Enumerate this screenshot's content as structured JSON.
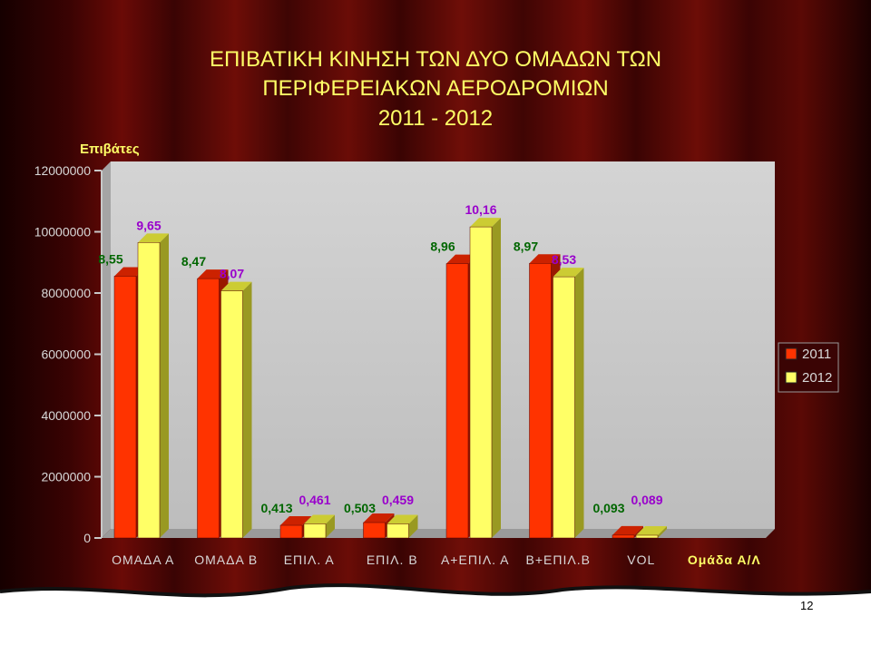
{
  "slide": {
    "title_line1": "ΕΠΙΒΑΤΙΚΗ ΚΙΝΗΣΗ ΤΩΝ ΔΥΟ ΟΜΑΔΩΝ ΤΩΝ",
    "title_line2": "ΠΕΡΙΦΕΡΕΙΑΚΩΝ ΑΕΡΟΔΡΟΜΙΩΝ",
    "title_line3": "2011 - 2012",
    "page_number": "12"
  },
  "colors": {
    "series_2011": "#ff3300",
    "series_2012": "#ffff66",
    "text_green": "#006600",
    "text_purple": "#9900cc"
  },
  "chart_data": {
    "type": "bar",
    "ylabel": "Επιβάτες",
    "ylim": [
      0,
      12000000
    ],
    "yticks": [
      "0",
      "2000000",
      "4000000",
      "6000000",
      "8000000",
      "10000000",
      "12000000"
    ],
    "categories": [
      "ΟΜΑΔΑ Α",
      "ΟΜΑΔΑ Β",
      "ΕΠΙΛ. Α",
      "ΕΠΙΛ. Β",
      "Α+ΕΠΙΛ. Α",
      "Β+ΕΠΙΛ.Β",
      "VOL",
      "Ομάδα Α/Λ"
    ],
    "legend_position": "right",
    "series": [
      {
        "name": "2011",
        "values": [
          8550000,
          8470000,
          413000,
          503000,
          8960000,
          8970000,
          93000,
          null
        ],
        "labels": [
          "8,55",
          "8,47",
          "0,413",
          "0,503",
          "8,96",
          "8,97",
          "0,093",
          ""
        ]
      },
      {
        "name": "2012",
        "values": [
          9650000,
          8070000,
          461000,
          459000,
          10160000,
          8530000,
          89000,
          null
        ],
        "labels": [
          "9,65",
          "8,07",
          "0,461",
          "0,459",
          "10,16",
          "8,53",
          "0,089",
          ""
        ]
      }
    ]
  }
}
